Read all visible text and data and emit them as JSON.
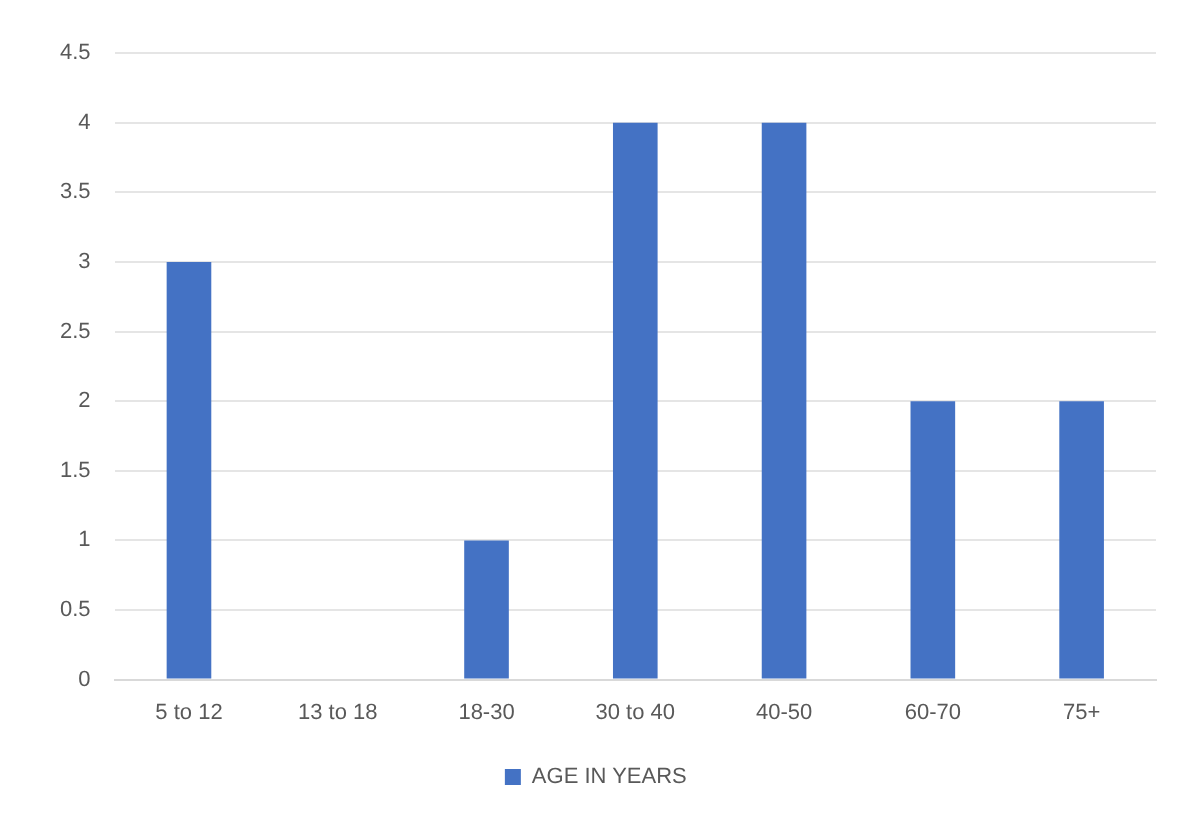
{
  "chart_data": {
    "type": "bar",
    "categories": [
      "5 to 12",
      "13 to 18",
      "18-30",
      "30 to 40",
      "40-50",
      "60-70",
      "75+"
    ],
    "series": [
      {
        "name": "AGE IN YEARS",
        "color": "#4472c4",
        "values": [
          3,
          0,
          1,
          4,
          4,
          2,
          2
        ]
      }
    ],
    "ylim": [
      0,
      4.5
    ],
    "yticks": [
      0,
      0.5,
      1,
      1.5,
      2,
      2.5,
      3,
      3.5,
      4,
      4.5
    ],
    "grid": "y",
    "legend": "bottom"
  }
}
